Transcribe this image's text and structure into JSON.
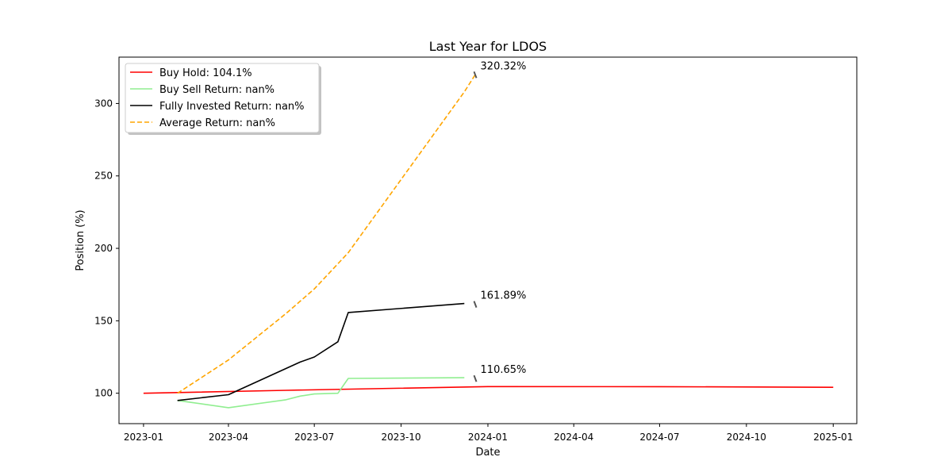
{
  "chart_data": {
    "type": "line",
    "title": "Last Year for LDOS",
    "xlabel": "Date",
    "ylabel": "Position (%)",
    "xlim": [
      "2022-12-06",
      "2025-01-26"
    ],
    "ylim": [
      79,
      332
    ],
    "x_ticks": [
      "2023-01",
      "2023-04",
      "2023-07",
      "2023-10",
      "2024-01",
      "2024-04",
      "2024-07",
      "2024-10",
      "2025-01"
    ],
    "y_ticks": [
      100,
      150,
      200,
      250,
      300
    ],
    "legend_position": "top-left",
    "series": [
      {
        "name": "Buy Hold: 104.1%",
        "color": "#ff0000",
        "dash": "solid",
        "points": [
          [
            "2023-01-01",
            100.0
          ],
          [
            "2023-06-01",
            102.0
          ],
          [
            "2024-01-01",
            104.6
          ],
          [
            "2024-07-01",
            104.5
          ],
          [
            "2025-01-01",
            104.1
          ]
        ]
      },
      {
        "name": "Buy Sell Return: nan%",
        "color": "#90ee90",
        "dash": "solid",
        "points": [
          [
            "2023-02-06",
            95.0
          ],
          [
            "2023-04-01",
            90.0
          ],
          [
            "2023-06-01",
            95.5
          ],
          [
            "2023-06-16",
            98.0
          ],
          [
            "2023-07-01",
            99.5
          ],
          [
            "2023-07-26",
            100.0
          ],
          [
            "2023-08-06",
            110.2
          ],
          [
            "2023-12-07",
            110.7
          ]
        ]
      },
      {
        "name": "Fully Invested Return: nan%",
        "color": "#000000",
        "dash": "solid",
        "points": [
          [
            "2023-02-06",
            95.0
          ],
          [
            "2023-04-01",
            99.0
          ],
          [
            "2023-06-16",
            121.5
          ],
          [
            "2023-07-01",
            125.0
          ],
          [
            "2023-07-26",
            135.5
          ],
          [
            "2023-08-06",
            155.7
          ],
          [
            "2023-12-07",
            161.9
          ]
        ]
      },
      {
        "name": "Average Return: nan%",
        "color": "#ffa500",
        "dash": "dashed",
        "points": [
          [
            "2023-02-06",
            100.0
          ],
          [
            "2023-04-01",
            123.0
          ],
          [
            "2023-06-01",
            155.0
          ],
          [
            "2023-07-01",
            172.0
          ],
          [
            "2023-08-06",
            197.0
          ],
          [
            "2023-12-07",
            308.0
          ],
          [
            "2023-12-19",
            320.3
          ]
        ]
      }
    ],
    "annotations": [
      {
        "text": "320.32%",
        "x": "2023-12-19",
        "y": 320.32
      },
      {
        "text": "161.89%",
        "x": "2023-12-19",
        "y": 161.89
      },
      {
        "text": "110.65%",
        "x": "2023-12-19",
        "y": 110.65
      }
    ]
  }
}
